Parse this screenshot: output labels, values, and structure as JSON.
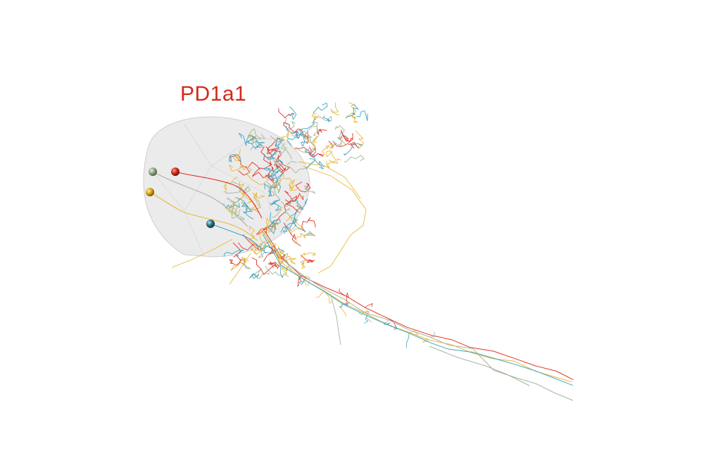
{
  "label": "PD1a1",
  "colors": {
    "label": "#d42a1c",
    "neuropil_fill": "#e6e6e6",
    "neuropil_stroke": "#cfcfcf",
    "red": "#e0362a",
    "yellow": "#e8b93a",
    "cyan": "#3fa6c2",
    "gray_green": "#a6b59c",
    "teal": "#2e7f92"
  },
  "neurons": [
    {
      "id": "red",
      "color": "#e0362a",
      "soma_color": "#c8261a"
    },
    {
      "id": "gray-green",
      "color": "#a6b59c",
      "soma_color": "#8fa58a"
    },
    {
      "id": "yellow",
      "color": "#e8b93a",
      "soma_color": "#d4a20e"
    },
    {
      "id": "teal",
      "color": "#3fa6c2",
      "soma_color": "#2a6f80"
    }
  ]
}
